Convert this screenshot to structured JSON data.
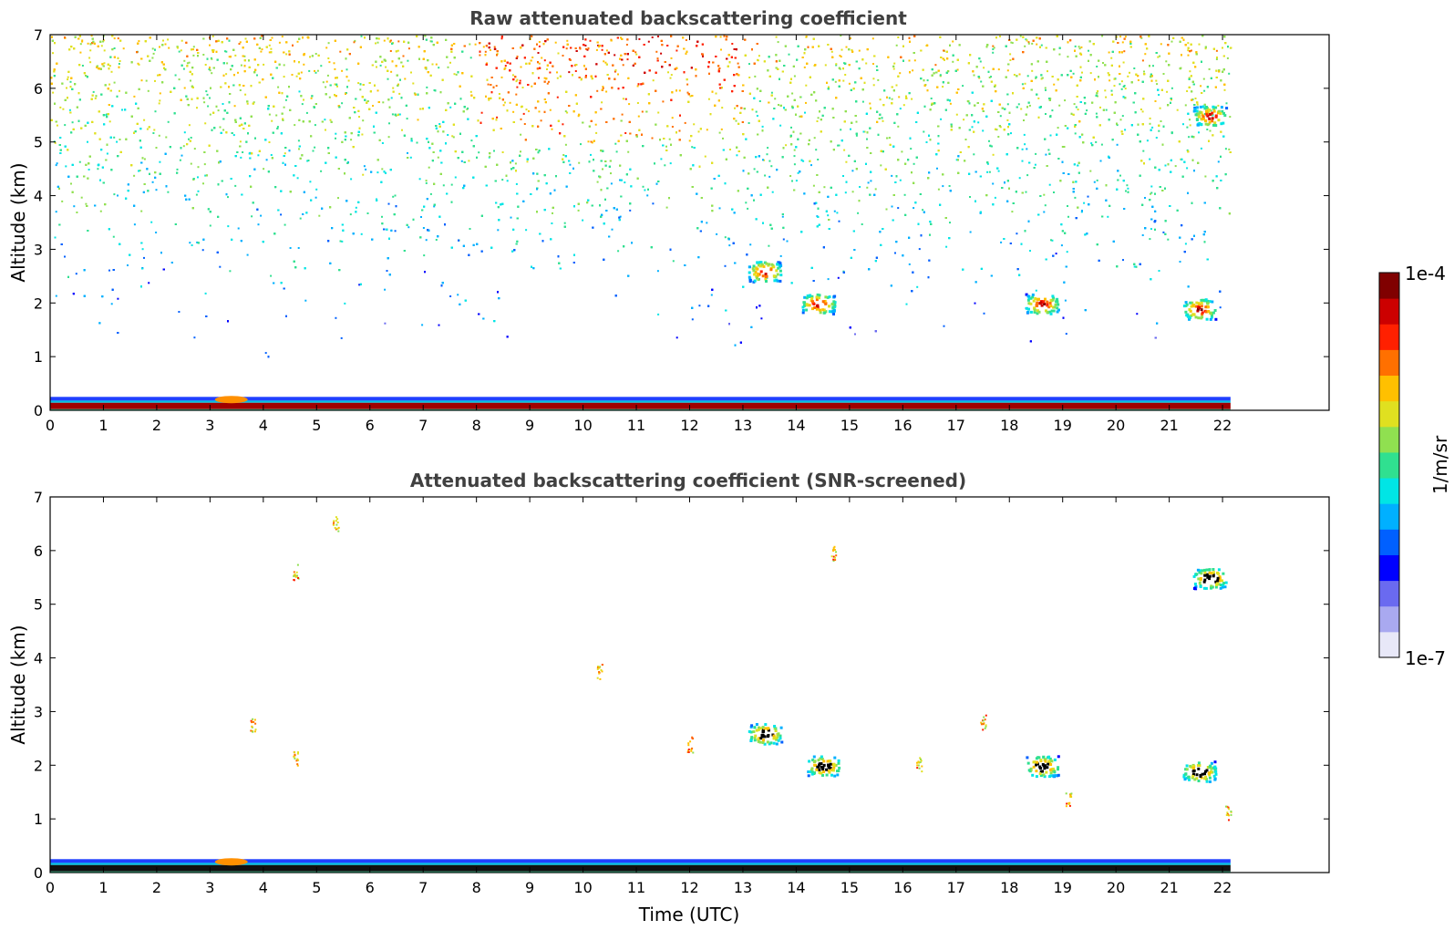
{
  "chart_data": [
    {
      "type": "heatmap",
      "title": "Raw attenuated backscattering coefficient",
      "xlabel": "",
      "ylabel": "Altitude (km)",
      "xlim": [
        0,
        24
      ],
      "ylim": [
        0,
        7
      ],
      "xticks": [
        "0",
        "1",
        "2",
        "3",
        "4",
        "5",
        "6",
        "7",
        "8",
        "9",
        "10",
        "11",
        "12",
        "13",
        "14",
        "15",
        "16",
        "17",
        "18",
        "19",
        "20",
        "21",
        "22"
      ],
      "yticks": [
        "0",
        "1",
        "2",
        "3",
        "4",
        "5",
        "6",
        "7"
      ],
      "data_end_time": 22.15,
      "features": [
        {
          "kind": "surface-layer",
          "t0": 0,
          "t1": 22.15,
          "z0": 0,
          "z1": 0.25
        },
        {
          "kind": "cloud",
          "time": 13.4,
          "altitude": 2.6
        },
        {
          "kind": "cloud",
          "time": 14.4,
          "altitude": 2.0
        },
        {
          "kind": "cloud",
          "time": 18.6,
          "altitude": 2.0
        },
        {
          "kind": "cloud",
          "time": 21.55,
          "altitude": 1.9
        },
        {
          "kind": "cloud",
          "time": 21.75,
          "altitude": 5.5
        }
      ]
    },
    {
      "type": "heatmap",
      "title": "Attenuated backscattering coefficient (SNR-screened)",
      "xlabel": "Time (UTC)",
      "ylabel": "Altitude (km)",
      "xlim": [
        0,
        24
      ],
      "ylim": [
        0,
        7
      ],
      "xticks": [
        "0",
        "1",
        "2",
        "3",
        "4",
        "5",
        "6",
        "7",
        "8",
        "9",
        "10",
        "11",
        "12",
        "13",
        "14",
        "15",
        "16",
        "17",
        "18",
        "19",
        "20",
        "21",
        "22"
      ],
      "yticks": [
        "0",
        "1",
        "2",
        "3",
        "4",
        "5",
        "6",
        "7"
      ],
      "data_end_time": 22.15,
      "features": [
        {
          "kind": "surface-layer",
          "t0": 0,
          "t1": 22.15,
          "z0": 0,
          "z1": 0.25
        },
        {
          "kind": "cloud",
          "time": 13.4,
          "altitude": 2.6
        },
        {
          "kind": "cloud",
          "time": 14.5,
          "altitude": 2.0
        },
        {
          "kind": "cloud",
          "time": 18.6,
          "altitude": 2.0
        },
        {
          "kind": "cloud",
          "time": 21.55,
          "altitude": 1.9
        },
        {
          "kind": "cloud",
          "time": 21.75,
          "altitude": 5.5
        }
      ]
    }
  ],
  "colorbar": {
    "max_label": "1e-4",
    "min_label": "1e-7",
    "unit_label": "1/m/sr",
    "colors": [
      "#e8e8f8",
      "#a9a9f0",
      "#6a6af0",
      "#0000ff",
      "#0060ff",
      "#00b0ff",
      "#00e5e5",
      "#30e090",
      "#90e050",
      "#e0e020",
      "#ffc000",
      "#ff7000",
      "#ff2000",
      "#cc0000",
      "#800000"
    ]
  }
}
